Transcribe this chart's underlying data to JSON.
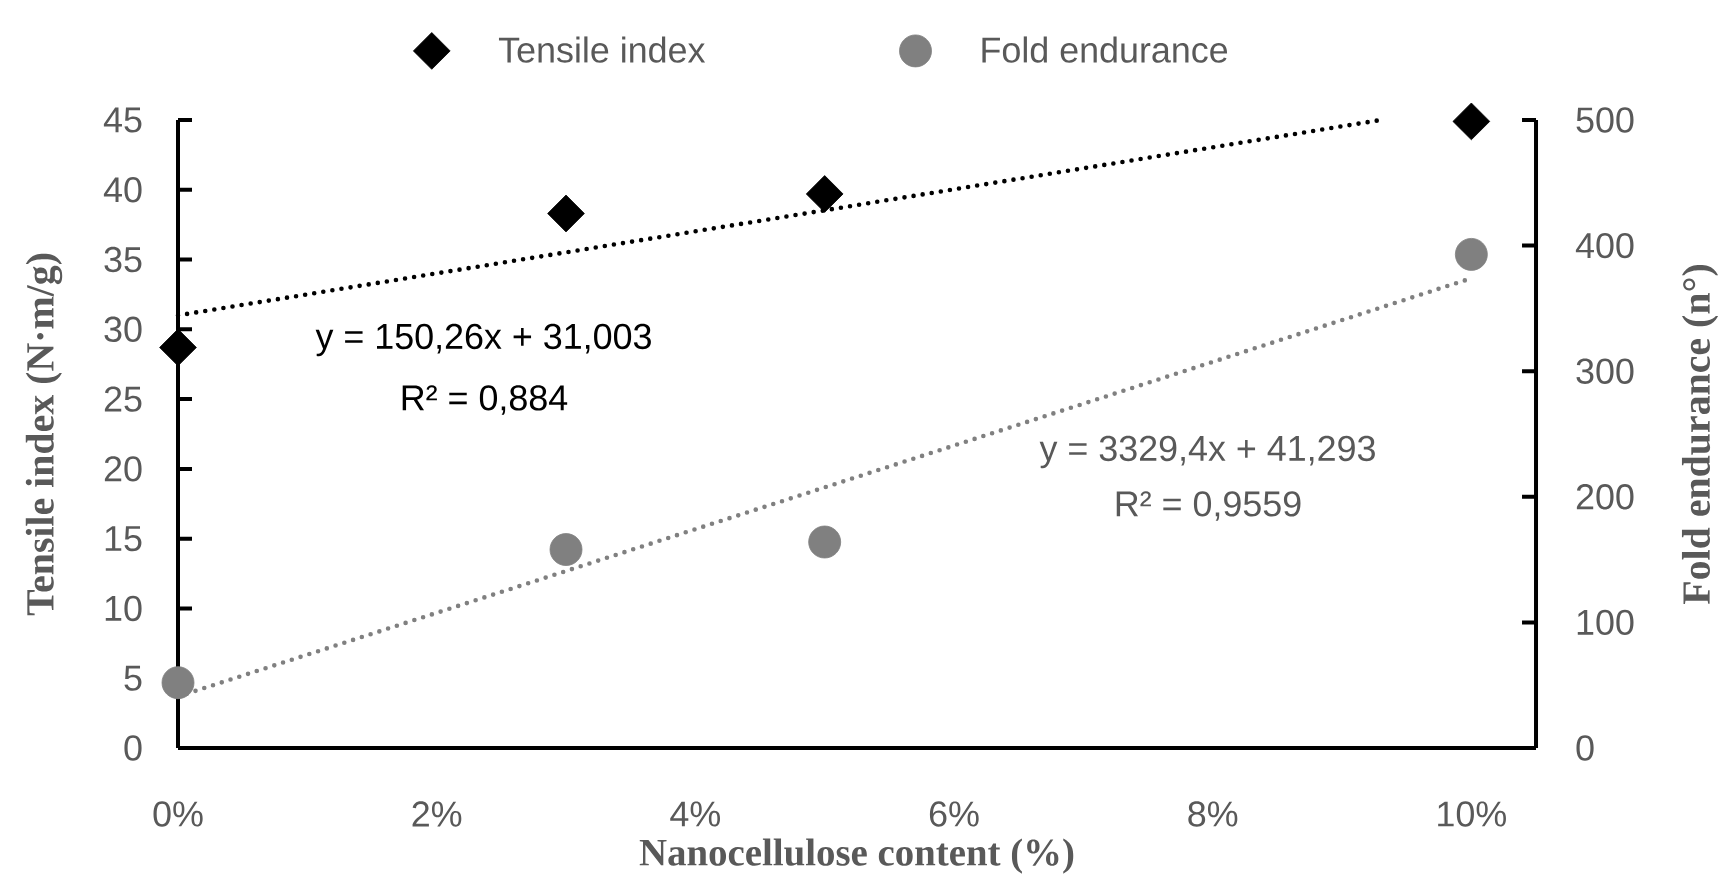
{
  "chart_data": {
    "type": "scatter",
    "xlabel": "Nanocellulose content (%)",
    "ylabel": "Tensile index (N·m/g)",
    "y2label": "Fold endurance (n°)",
    "xlim": [
      0,
      10.5
    ],
    "xticks": [
      {
        "value": 0,
        "label": "0%"
      },
      {
        "value": 2,
        "label": "2%"
      },
      {
        "value": 4,
        "label": "4%"
      },
      {
        "value": 6,
        "label": "6%"
      },
      {
        "value": 8,
        "label": "8%"
      },
      {
        "value": 10,
        "label": "10%"
      }
    ],
    "ylim": [
      0,
      45
    ],
    "yticks": [
      0,
      5,
      10,
      15,
      20,
      25,
      30,
      35,
      40,
      45
    ],
    "y2lim": [
      0,
      500
    ],
    "y2ticks": [
      0,
      100,
      200,
      300,
      400,
      500
    ],
    "legend": "top",
    "series": [
      {
        "name": "Tensile index",
        "marker": "diamond",
        "color": "#000000",
        "x": [
          0,
          3,
          5,
          10
        ],
        "values": [
          28.7,
          38.3,
          39.7,
          44.9
        ]
      },
      {
        "name": "Fold endurance",
        "marker": "circle",
        "color": "#808080",
        "axis": "y2",
        "x": [
          0,
          3,
          5,
          10
        ],
        "values": [
          52,
          158,
          164,
          393
        ]
      },
      {
        "type": "line",
        "line_style": "dotted",
        "color": "#000000",
        "x": [
          0,
          9.3
        ],
        "values": [
          31.0,
          45.0
        ]
      },
      {
        "type": "line",
        "line_style": "dotted",
        "color": "#808080",
        "axis": "y2",
        "x": [
          0,
          10
        ],
        "values": [
          41,
          374
        ]
      }
    ],
    "annotations": [
      "y = 150,26x + 31,003",
      "R² = 0,884",
      "y = 3329,4x + 41,293",
      "R² = 0,9559"
    ]
  }
}
